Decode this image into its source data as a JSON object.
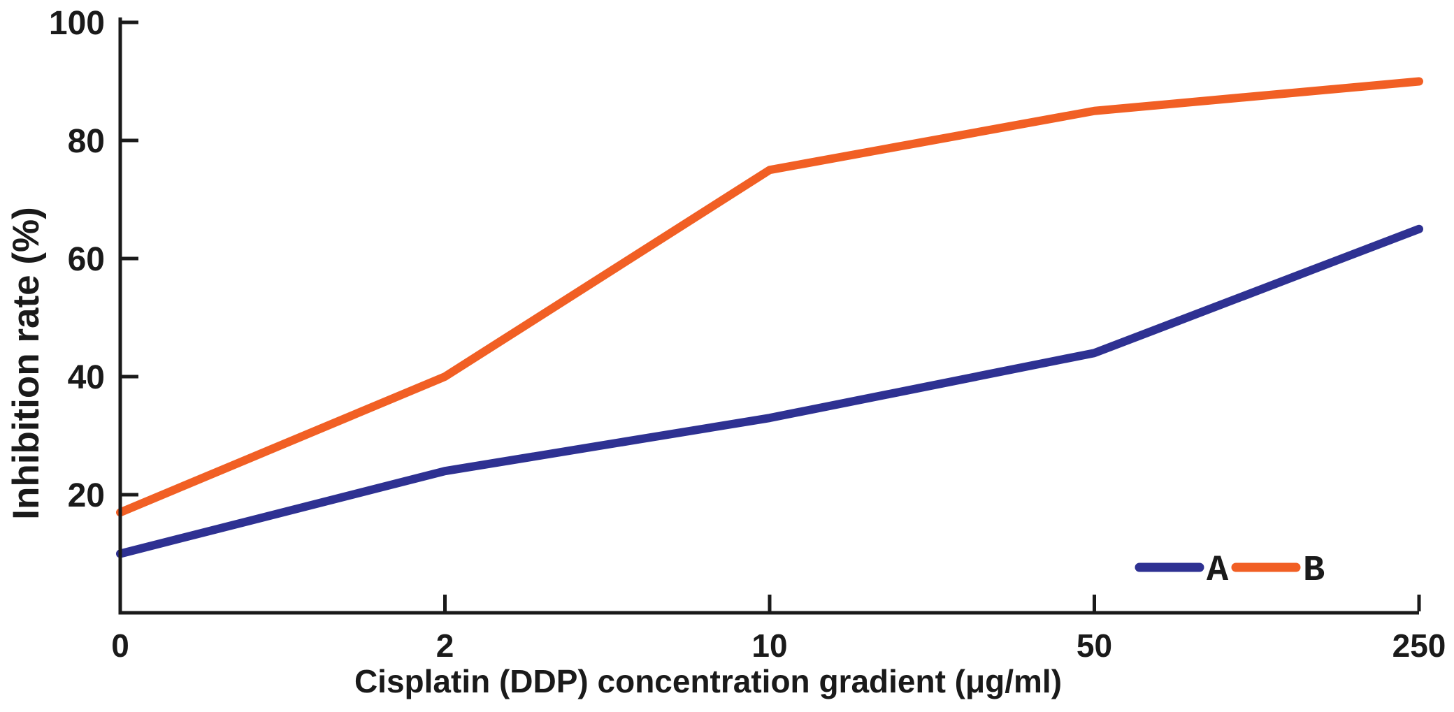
{
  "figure": {
    "background": "#ffffff",
    "axis_color": "#1a1a1a",
    "text_color": "#1a1a1a"
  },
  "chart_data": {
    "type": "line",
    "title": "",
    "xlabel": "Cisplatin (DDP) concentration gradient (μg/ml)",
    "ylabel": "Inhibition rate (%)",
    "categories": [
      "0",
      "2",
      "10",
      "50",
      "250"
    ],
    "x_scale": "categorical-even-spacing",
    "y_ticks": [
      20,
      40,
      60,
      80,
      100
    ],
    "ylim": [
      0,
      100
    ],
    "grid": false,
    "legend": {
      "position": "inside-bottom-right",
      "labels": [
        "A",
        "B"
      ]
    },
    "series": [
      {
        "name": "A",
        "color": "#2e3192",
        "values": [
          10,
          24,
          33,
          44,
          65
        ]
      },
      {
        "name": "B",
        "color": "#f15f24",
        "values": [
          17,
          40,
          75,
          85,
          90
        ]
      }
    ]
  }
}
